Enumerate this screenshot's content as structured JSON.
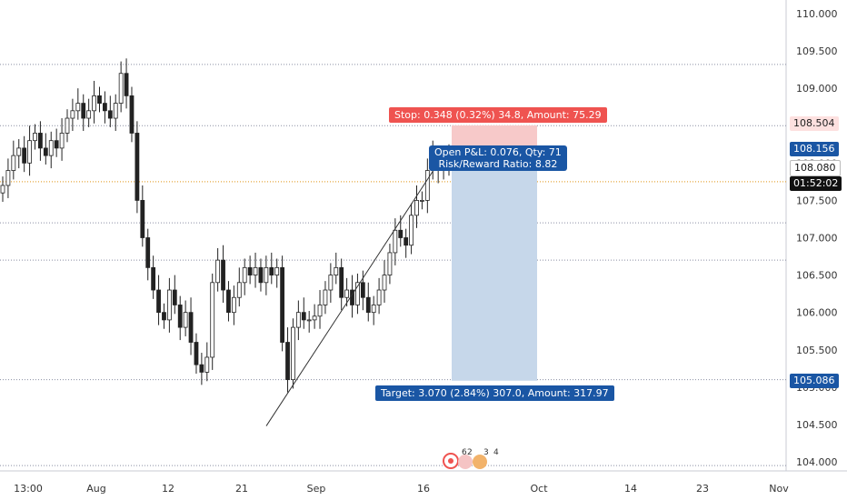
{
  "chart_data": {
    "type": "candlestick",
    "title": "",
    "xlabel": "",
    "ylabel": "",
    "ylim": [
      103.85,
      110.2
    ],
    "x_ticks": [
      "13:00",
      "Aug",
      "12",
      "21",
      "Sep",
      "16",
      "Oct",
      "14",
      "23",
      "Nov"
    ],
    "y_ticks": [
      "110.000",
      "109.500",
      "109.000",
      "108.500",
      "108.000",
      "107.500",
      "107.000",
      "106.500",
      "106.000",
      "105.500",
      "105.000",
      "104.500",
      "104.000"
    ],
    "series": [
      {
        "values": [
          107.7,
          107.9,
          108.1,
          108.2,
          108.0,
          108.3,
          108.4,
          108.2,
          108.1,
          108.3,
          108.2,
          108.4,
          108.6,
          108.7,
          108.8,
          108.6,
          108.7,
          108.9,
          108.8,
          108.7,
          108.6,
          108.8,
          109.2,
          108.9,
          108.4,
          107.5,
          107.0,
          106.6,
          106.3,
          106.0,
          105.9,
          106.3,
          106.1,
          105.8,
          106.0,
          105.6,
          105.3,
          105.2,
          105.4,
          106.4,
          106.7,
          106.3,
          106.0,
          106.2,
          106.4,
          106.6,
          106.5,
          106.6,
          106.4,
          106.6,
          106.5,
          106.6,
          105.6,
          105.1,
          105.8,
          106.0,
          105.9,
          105.9,
          105.95,
          106.1,
          106.3,
          106.5,
          106.6,
          106.2,
          106.3,
          106.1,
          106.4,
          106.2,
          106.0,
          106.1,
          106.3,
          106.5,
          106.8,
          107.1,
          107.0,
          106.9,
          107.3,
          107.5,
          107.5,
          107.9,
          108.1,
          107.9,
          108.0,
          108.05
        ]
      }
    ],
    "price_levels": [
      {
        "label": "108.504",
        "value": 108.504
      },
      {
        "label": "108.156",
        "value": 108.156
      },
      {
        "label": "108.080",
        "value": 108.08
      },
      {
        "label": "105.086",
        "value": 105.086
      }
    ],
    "horizontal_lines": [
      109.32,
      108.5,
      107.75,
      107.2,
      106.7,
      105.1,
      103.95
    ],
    "trendline": {
      "from": [
        "21",
        104.48
      ],
      "to": [
        "16",
        107.72
      ]
    },
    "position": {
      "entry": 108.156,
      "stop": 108.504,
      "target": 105.086,
      "stop_label": "Stop: 0.348 (0.32%) 34.8, Amount: 75.29",
      "target_label": "Target: 3.070 (2.84%) 307.0, Amount: 317.97",
      "pnl_label": "Open P&L: 0.076, Qty: 71",
      "rr_label": "Risk/Reward Ratio: 8.82"
    },
    "countdown": "01:52:02",
    "event_markers": [
      "6",
      "2",
      "3",
      "4"
    ],
    "colors": {
      "stop_zone": "#f7c9c9",
      "target_zone": "#c6d7ea",
      "accent_blue": "#1a56a4",
      "stop_red": "#ef5350"
    }
  }
}
